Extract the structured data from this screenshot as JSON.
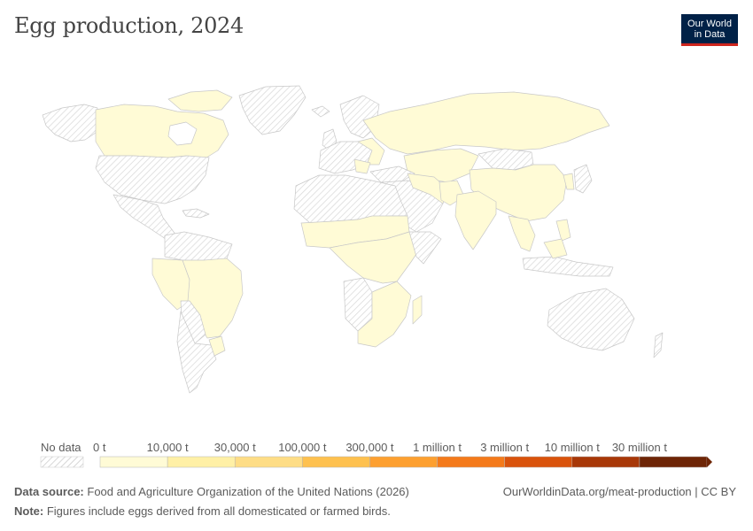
{
  "title": "Egg production, 2024",
  "logo": {
    "line1": "Our World",
    "line2": "in Data"
  },
  "legend": {
    "no_data_label": "No data",
    "bins": [
      {
        "label": "0 t",
        "color": "#fffbd6"
      },
      {
        "label": "10,000 t",
        "color": "#fff0a6"
      },
      {
        "label": "30,000 t",
        "color": "#fedd86"
      },
      {
        "label": "100,000 t",
        "color": "#fec14f"
      },
      {
        "label": "300,000 t",
        "color": "#fda030"
      },
      {
        "label": "1 million t",
        "color": "#f47a1a"
      },
      {
        "label": "3 million t",
        "color": "#d9530c"
      },
      {
        "label": "10 million t",
        "color": "#a83808"
      },
      {
        "label": "30 million t",
        "color": "#6e2506"
      }
    ]
  },
  "colors": {
    "no_data_hatch": "#d9d9d9",
    "low_value_fill": "#fffbd6",
    "border": "#c8c8c8",
    "brand": "#002147",
    "brand_accent": "#ce261e"
  },
  "footer": {
    "source_label": "Data source:",
    "source_text": "Food and Agriculture Organization of the United Nations (2026)",
    "note_label": "Note:",
    "note_text": "Figures include eggs derived from all domesticated or farmed birds.",
    "credit": "OurWorldinData.org/meat-production | CC BY"
  }
}
